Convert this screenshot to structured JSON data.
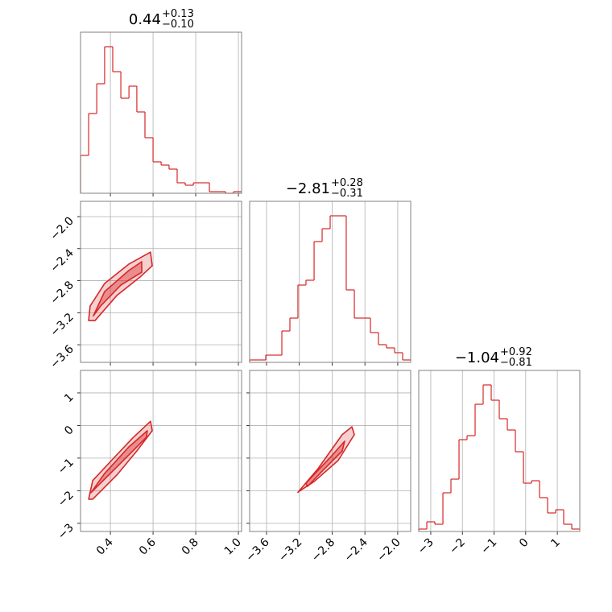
{
  "chart_data": {
    "type": "corner",
    "color": "#d62728",
    "grid": true,
    "params": [
      {
        "title": {
          "value": "0.44",
          "plus": "+0.13",
          "minus": "−0.10"
        },
        "xlim": [
          0.26,
          1.015
        ],
        "ticks": [
          0.4,
          0.6,
          0.8,
          {
            "value": 1.0,
            "label": "1.0"
          }
        ]
      },
      {
        "title": {
          "value": "−2.81",
          "plus": "+0.28",
          "minus": "−0.31"
        },
        "xlim": [
          -3.806,
          -1.842
        ],
        "ylim": [
          -3.82,
          -1.809
        ],
        "ticks": [
          {
            "value": -3.6,
            "label": "−3.6"
          },
          {
            "value": -3.2,
            "label": "−3.2"
          },
          {
            "value": -2.8,
            "label": "−2.8"
          },
          {
            "value": -2.4,
            "label": "−2.4"
          },
          {
            "value": -2.0,
            "label": "−2.0"
          }
        ]
      },
      {
        "title": {
          "value": "−1.04",
          "plus": "+0.92",
          "minus": "−0.81"
        },
        "xlim": [
          -3.38,
          1.71
        ],
        "ylim": [
          -3.25,
          1.69
        ],
        "ticks": [
          {
            "value": -3,
            "label": "−3"
          },
          {
            "value": -2,
            "label": "−2"
          },
          {
            "value": -1,
            "label": "−1"
          },
          0,
          1
        ]
      }
    ],
    "histograms": [
      {
        "ylim": [
          0,
          200
        ],
        "bins": [
          0.26,
          0.298,
          0.336,
          0.373,
          0.411,
          0.449,
          0.487,
          0.524,
          0.562,
          0.6,
          0.638,
          0.675,
          0.713,
          0.751,
          0.789,
          0.826,
          0.864,
          0.902,
          0.94,
          0.977,
          1.015
        ],
        "values": [
          47,
          99,
          136,
          182,
          151,
          118,
          133,
          101,
          69,
          39,
          35,
          30,
          13,
          10,
          13,
          13,
          2,
          2,
          0,
          2
        ]
      },
      {
        "ylim": [
          0,
          200
        ],
        "bins": [
          -3.806,
          -3.708,
          -3.61,
          -3.511,
          -3.413,
          -3.315,
          -3.217,
          -3.119,
          -3.02,
          -2.922,
          -2.824,
          -2.726,
          -2.628,
          -2.529,
          -2.431,
          -2.333,
          -2.235,
          -2.137,
          -2.038,
          -1.94,
          -1.842
        ],
        "values": [
          3,
          3,
          9,
          9,
          39,
          55,
          96,
          102,
          150,
          166,
          182,
          182,
          90,
          55,
          55,
          37,
          22,
          18,
          12,
          3
        ]
      },
      {
        "ylim": [
          0,
          200
        ],
        "bins": [
          -3.38,
          -3.125,
          -2.871,
          -2.616,
          -2.362,
          -2.107,
          -1.853,
          -1.598,
          -1.344,
          -1.089,
          -0.835,
          -0.58,
          -0.326,
          -0.071,
          0.183,
          0.438,
          0.692,
          0.947,
          1.201,
          1.456,
          1.71
        ],
        "values": [
          3,
          12,
          9,
          48,
          65,
          114,
          119,
          158,
          182,
          163,
          140,
          126,
          99,
          60,
          63,
          42,
          23,
          27,
          9,
          3
        ]
      }
    ],
    "contours": [
      [
        {
          "x": [
            0.298,
            0.305,
            0.373,
            0.486,
            0.588,
            0.596,
            0.543,
            0.43,
            0.328
          ],
          "y": [
            -3.298,
            -3.117,
            -2.835,
            -2.594,
            -2.443,
            -2.614,
            -2.745,
            -2.986,
            -3.298
          ]
        },
        {
          "x": [
            0.32,
            0.373,
            0.486,
            0.547,
            0.547,
            0.449,
            0.354
          ],
          "y": [
            -3.24,
            -2.936,
            -2.674,
            -2.563,
            -2.694,
            -2.855,
            -3.117
          ]
        }
      ],
      [
        {
          "x": [
            0.298,
            0.317,
            0.411,
            0.505,
            0.588,
            0.596,
            0.524,
            0.43,
            0.317
          ],
          "y": [
            -2.26,
            -1.69,
            -1.03,
            -0.38,
            0.13,
            -0.16,
            -0.78,
            -1.52,
            -2.26
          ]
        },
        {
          "x": [
            0.309,
            0.373,
            0.486,
            0.573,
            0.569,
            0.449,
            0.335
          ],
          "y": [
            -2.06,
            -1.47,
            -0.66,
            -0.16,
            -0.36,
            -1.15,
            -1.89
          ]
        }
      ],
      [
        {
          "x": [
            -3.217,
            -2.971,
            -2.677,
            -2.559,
            -2.529,
            -2.726,
            -3.02,
            -3.198
          ],
          "y": [
            -2.05,
            -1.32,
            -0.28,
            -0.04,
            -0.28,
            -1.07,
            -1.72,
            -2.01
          ]
        },
        {
          "x": [
            -3.119,
            -2.824,
            -2.647,
            -2.677,
            -2.922,
            -3.1
          ],
          "y": [
            -1.77,
            -0.98,
            -0.48,
            -0.78,
            -1.4,
            -1.87
          ]
        }
      ]
    ]
  }
}
